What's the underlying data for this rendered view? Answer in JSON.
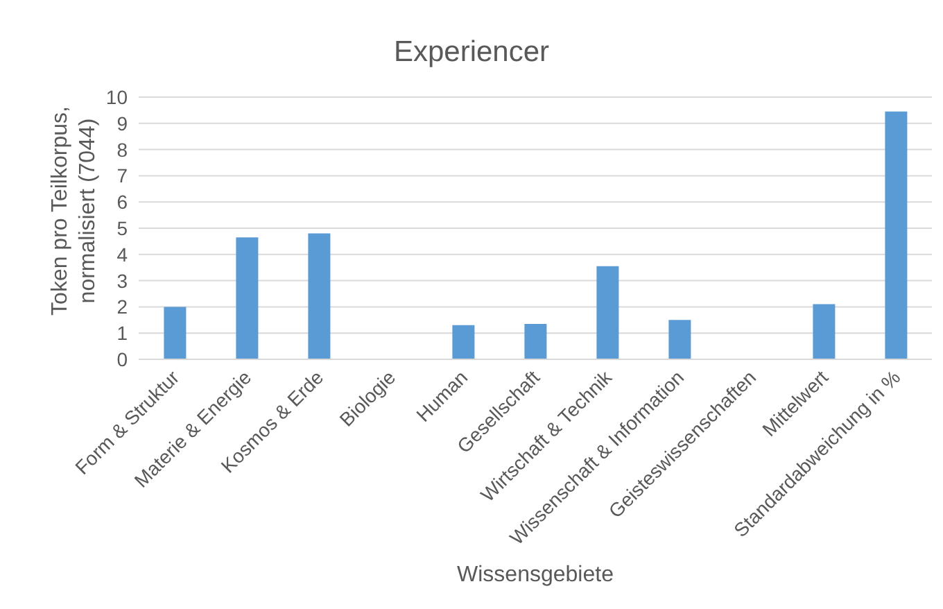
{
  "chart_data": {
    "type": "bar",
    "title": "Experiencer",
    "xlabel": "Wissensgebiete",
    "ylabel": "Token pro Teilkorpus, normalisiert (7044)",
    "categories": [
      "Form & Struktur",
      "Materie & Energie",
      "Kosmos & Erde",
      "Biologie",
      "Human",
      "Gesellschaft",
      "Wirtschaft & Technik",
      "Wissenschaft & Information",
      "Geisteswissenschaften",
      "Mittelwert",
      "Standardabweichung in %"
    ],
    "values": [
      2.0,
      4.65,
      4.8,
      null,
      1.3,
      1.35,
      3.55,
      1.5,
      null,
      2.1,
      9.45
    ],
    "color": "#5b9bd5",
    "ylim": [
      0,
      10
    ],
    "yticks": [
      0,
      1,
      2,
      3,
      4,
      5,
      6,
      7,
      8,
      9,
      10
    ],
    "grid": "y"
  }
}
